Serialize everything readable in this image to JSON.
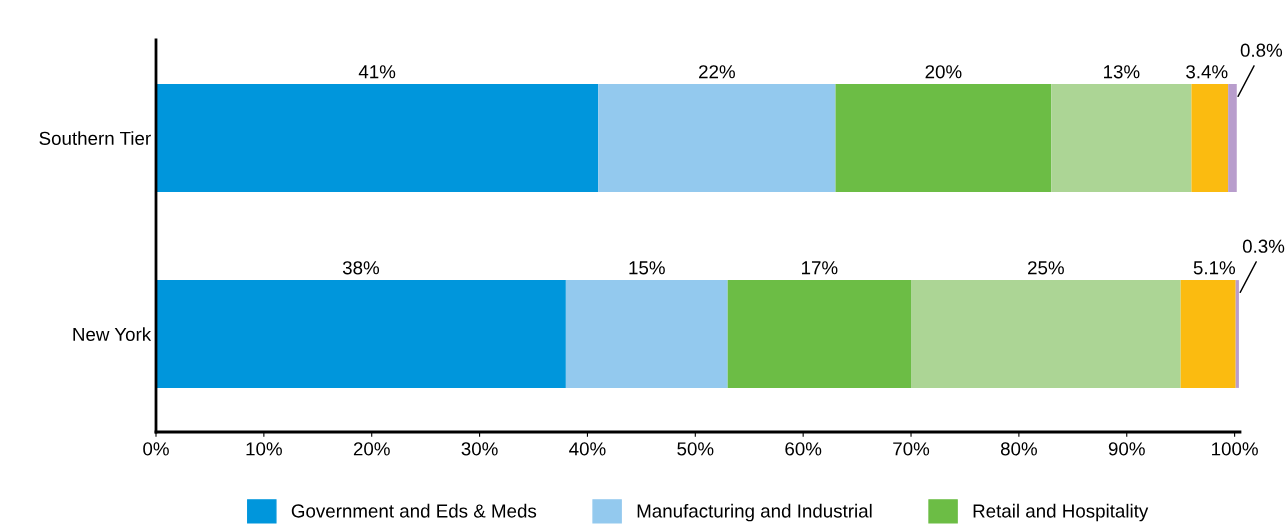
{
  "chart_data": {
    "type": "bar",
    "orientation": "horizontal",
    "stacked": true,
    "categories": [
      "Southern Tier",
      "New York"
    ],
    "series": [
      {
        "name": "Government and Eds & Meds",
        "color": "#0096dc",
        "values": [
          41,
          38
        ],
        "value_labels": [
          "41%",
          "38%"
        ]
      },
      {
        "name": "Manufacturing and Industrial",
        "color": "#93c9ee",
        "values": [
          22,
          15
        ],
        "value_labels": [
          "22%",
          "15%"
        ]
      },
      {
        "name": "Retail and Hospitality",
        "color": "#6cbd45",
        "values": [
          20,
          17
        ],
        "value_labels": [
          "20%",
          "17%"
        ]
      },
      {
        "color": "#acd595",
        "values": [
          13,
          25
        ],
        "value_labels": [
          "13%",
          "25%"
        ]
      },
      {
        "color": "#fbbb10",
        "values": [
          3.4,
          5.1
        ],
        "value_labels": [
          "3.4%",
          "5.1%"
        ]
      },
      {
        "color": "#b89dcc",
        "values": [
          0.8,
          0.3
        ],
        "value_labels": [
          "0.8%",
          "0.3%"
        ]
      }
    ],
    "xlim": [
      0,
      100.5
    ],
    "xticks": [
      {
        "value": 0,
        "label": "0%"
      },
      {
        "value": 10,
        "label": "10%"
      },
      {
        "value": 20,
        "label": "20%"
      },
      {
        "value": 30,
        "label": "30%"
      },
      {
        "value": 40,
        "label": "40%"
      },
      {
        "value": 50,
        "label": "50%"
      },
      {
        "value": 60,
        "label": "60%"
      },
      {
        "value": 70,
        "label": "70%"
      },
      {
        "value": 80,
        "label": "80%"
      },
      {
        "value": 90,
        "label": "90%"
      },
      {
        "value": 100,
        "label": "100%"
      }
    ],
    "grid": false,
    "legend": "bottom"
  }
}
